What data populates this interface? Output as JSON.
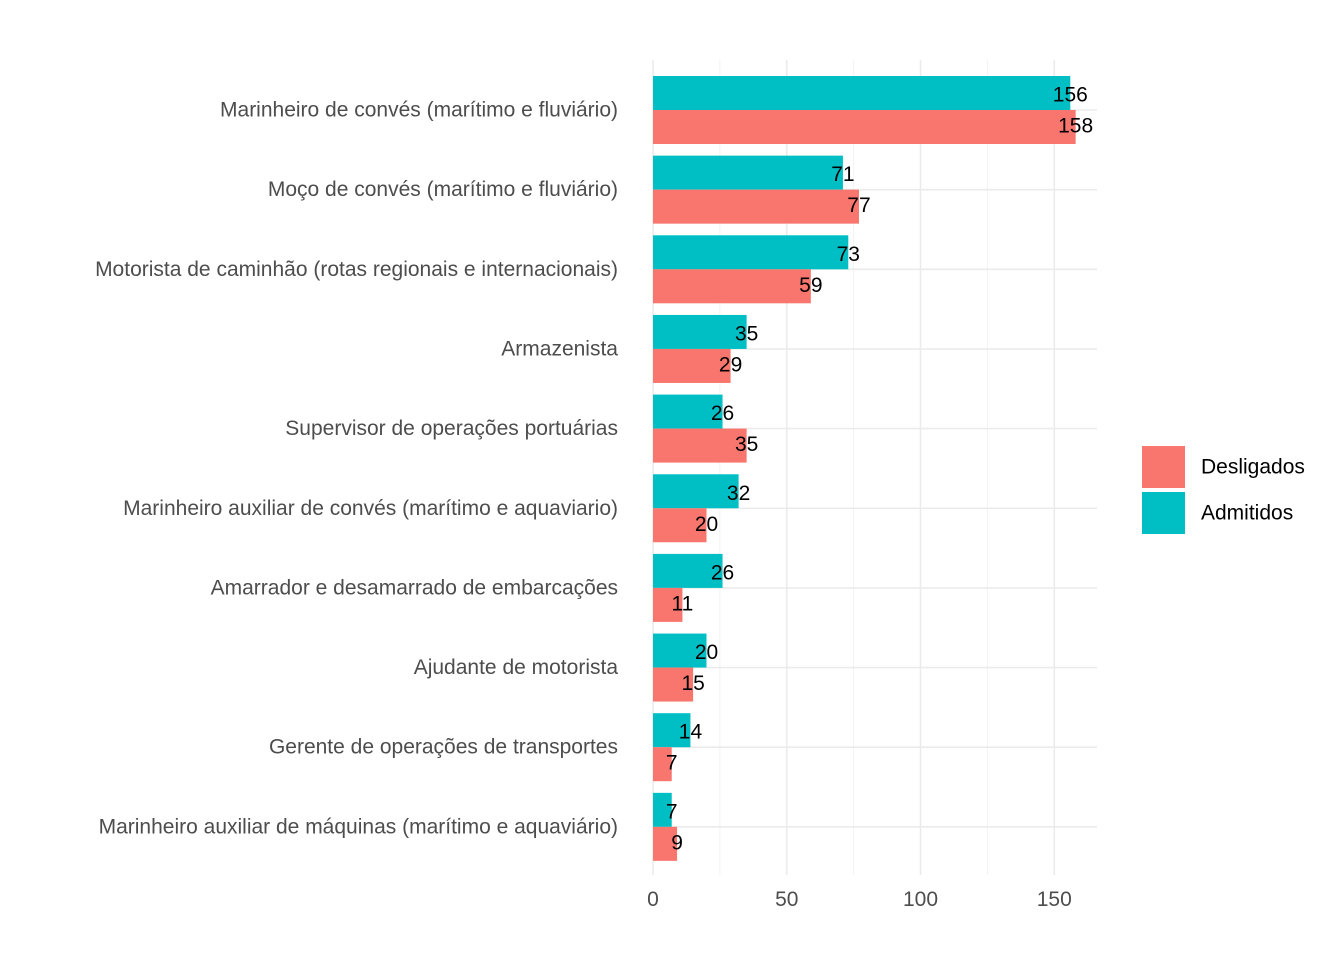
{
  "chart_data": {
    "type": "bar",
    "orientation": "horizontal",
    "categories": [
      "Marinheiro de convés (marítimo e fluviário)",
      "Moço de convés (marítimo e fluviário)",
      "Motorista de caminhão (rotas regionais e internacionais)",
      "Armazenista",
      "Supervisor de operações portuárias",
      "Marinheiro auxiliar de convés (marítimo e aquaviario)",
      "Amarrador e desamarrado de embarcações",
      "Ajudante de motorista",
      "Gerente de operações de transportes",
      "Marinheiro auxiliar de máquinas (marítimo e aquaviário)"
    ],
    "series": [
      {
        "name": "Admitidos",
        "color": "#00BFC4",
        "values": [
          156,
          71,
          73,
          35,
          26,
          32,
          26,
          20,
          14,
          7
        ]
      },
      {
        "name": "Desligados",
        "color": "#F8766D",
        "values": [
          158,
          77,
          59,
          29,
          35,
          20,
          11,
          15,
          7,
          9
        ]
      }
    ],
    "legend": {
      "position": "right",
      "entries": [
        {
          "name": "Desligados",
          "color": "#F8766D"
        },
        {
          "name": "Admitidos",
          "color": "#00BFC4"
        }
      ]
    },
    "x_ticks": [
      "0",
      "50",
      "100",
      "150"
    ],
    "xlim": [
      0,
      166
    ],
    "title": "",
    "xlabel": "",
    "ylabel": "",
    "grid": true
  }
}
